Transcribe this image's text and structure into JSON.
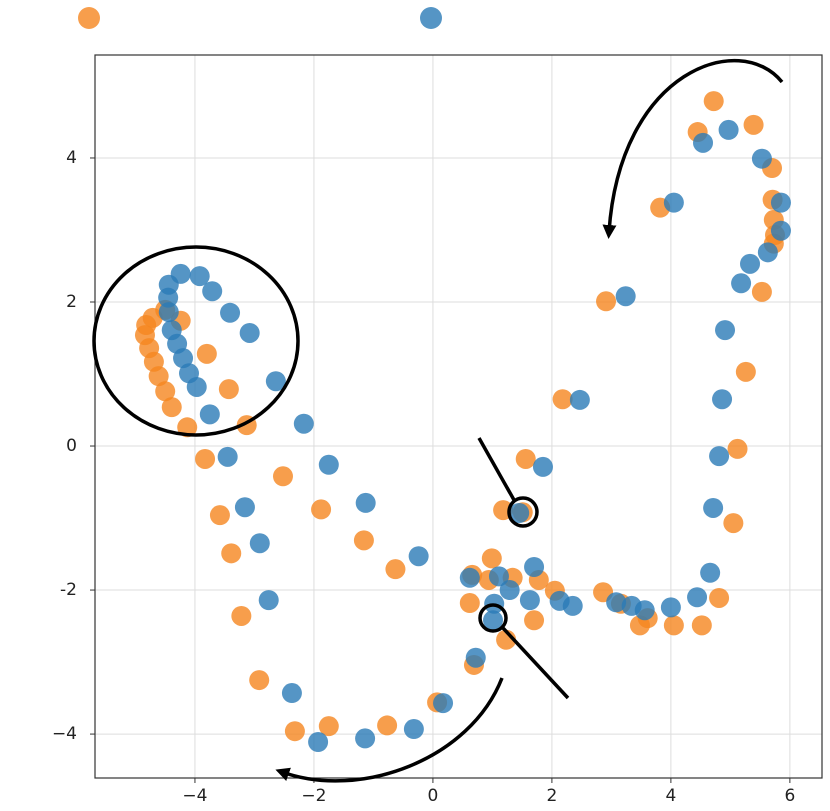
{
  "chart_data": {
    "type": "scatter",
    "xlim": [
      -5.68,
      6.54
    ],
    "ylim": [
      -4.61,
      5.43
    ],
    "xticks": [
      {
        "value": -4,
        "label": "−4"
      },
      {
        "value": -2,
        "label": "−2"
      },
      0,
      2,
      4,
      6
    ],
    "yticks": [
      {
        "value": -4,
        "label": "−4"
      },
      -2,
      0,
      2,
      4
    ],
    "grid": true,
    "alpha": 0.8,
    "legend": "top",
    "series": [
      {
        "color": "#f5861f",
        "x": [
          4.72,
          4.45,
          5.39,
          5.7,
          5.71,
          5.73,
          5.75,
          5.73,
          3.82,
          2.91,
          5.53,
          5.26,
          2.18,
          5.12,
          5.05,
          4.81,
          4.52,
          4.05,
          3.61,
          3.48,
          3.16,
          2.86,
          2.05,
          1.78,
          1.7,
          1.56,
          1.18,
          1.51,
          0.99,
          1.34,
          0.94,
          0.66,
          0.62,
          1.23,
          0.69,
          0.07,
          -0.77,
          -1.75,
          -2.32,
          -2.92,
          -3.22,
          -3.39,
          -3.58,
          -2.52,
          -1.88,
          -1.16,
          -0.63,
          -3.83,
          -3.13,
          -3.43,
          -3.8,
          -4.13,
          -4.39,
          -4.5,
          -4.61,
          -4.69,
          -4.77,
          -4.84,
          -4.82,
          -4.71,
          -4.5,
          -4.24
        ],
        "y": [
          4.79,
          4.36,
          4.46,
          3.86,
          3.42,
          3.14,
          2.93,
          2.81,
          3.31,
          2.01,
          2.14,
          1.03,
          0.65,
          -0.04,
          -1.07,
          -2.11,
          -2.49,
          -2.49,
          -2.39,
          -2.49,
          -2.19,
          -2.03,
          -2.01,
          -1.86,
          -2.42,
          -0.18,
          -0.89,
          -0.92,
          -1.56,
          -1.83,
          -1.86,
          -1.79,
          -2.18,
          -2.69,
          -3.04,
          -3.56,
          -3.88,
          -3.89,
          -3.96,
          -3.25,
          -2.36,
          -1.49,
          -0.96,
          -0.42,
          -0.88,
          -1.31,
          -1.71,
          -0.18,
          0.29,
          0.79,
          1.28,
          0.26,
          0.54,
          0.76,
          0.97,
          1.17,
          1.36,
          1.54,
          1.68,
          1.78,
          1.89,
          1.74
        ]
      },
      {
        "color": "#2a7ab6",
        "x": [
          4.97,
          4.54,
          5.53,
          5.85,
          5.85,
          5.63,
          5.33,
          5.18,
          4.05,
          3.24,
          4.91,
          4.86,
          4.81,
          4.71,
          4.66,
          4.44,
          4.0,
          3.56,
          3.34,
          3.08,
          2.35,
          2.13,
          2.47,
          1.85,
          1.45,
          1.7,
          1.63,
          1.11,
          1.29,
          1.03,
          1.01,
          0.62,
          0.72,
          0.17,
          -0.24,
          -0.32,
          -1.14,
          -1.93,
          -2.37,
          -2.76,
          -2.91,
          -3.16,
          -3.45,
          -3.75,
          -3.97,
          -4.1,
          -4.2,
          -4.3,
          -4.39,
          -4.44,
          -4.45,
          -4.44,
          -4.24,
          -3.92,
          -3.71,
          -3.41,
          -3.08,
          -2.64,
          -2.17,
          -1.75,
          -1.13
        ],
        "y": [
          4.39,
          4.21,
          3.99,
          3.38,
          2.99,
          2.69,
          2.53,
          2.26,
          3.38,
          2.08,
          1.61,
          0.65,
          -0.14,
          -0.86,
          -1.76,
          -2.1,
          -2.24,
          -2.28,
          -2.22,
          -2.17,
          -2.22,
          -2.15,
          0.64,
          -0.29,
          -0.93,
          -1.68,
          -2.14,
          -1.81,
          -2.0,
          -2.19,
          -2.42,
          -1.83,
          -2.94,
          -3.57,
          -1.53,
          -3.93,
          -4.06,
          -4.11,
          -3.43,
          -2.14,
          -1.35,
          -0.85,
          -0.15,
          0.44,
          0.82,
          1.01,
          1.22,
          1.42,
          1.61,
          1.86,
          2.06,
          2.24,
          2.39,
          2.36,
          2.15,
          1.85,
          1.57,
          0.9,
          0.31,
          -0.26,
          -0.79
        ]
      }
    ]
  }
}
